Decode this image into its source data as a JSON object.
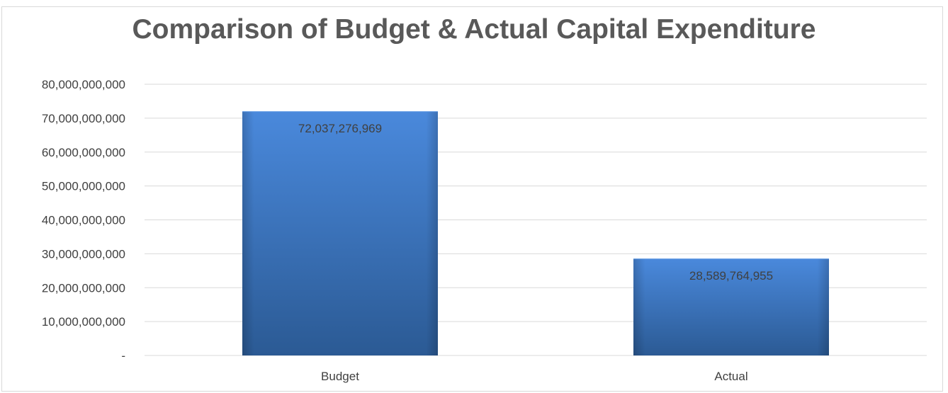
{
  "chart_data": {
    "type": "bar",
    "title": "Comparison of Budget & Actual Capital Expenditure",
    "xlabel": "",
    "ylabel": "",
    "categories": [
      "Budget",
      "Actual"
    ],
    "values": [
      72037276969,
      28589764955
    ],
    "data_labels": [
      "72,037,276,969",
      "28,589,764,955"
    ],
    "ylim": [
      0,
      80000000000
    ],
    "yticks": [
      0,
      10000000000,
      20000000000,
      30000000000,
      40000000000,
      50000000000,
      60000000000,
      70000000000,
      80000000000
    ],
    "ytick_labels": [
      "-",
      "10,000,000,000",
      "20,000,000,000",
      "30,000,000,000",
      "40,000,000,000",
      "50,000,000,000",
      "60,000,000,000",
      "70,000,000,000",
      "80,000,000,000"
    ],
    "grid": true,
    "legend": "none",
    "colors": {
      "bar_top": "#4a89dc",
      "bar_bottom": "#2b5a94",
      "grid": "#d9d9d9",
      "text": "#404040",
      "title": "#595959"
    }
  }
}
